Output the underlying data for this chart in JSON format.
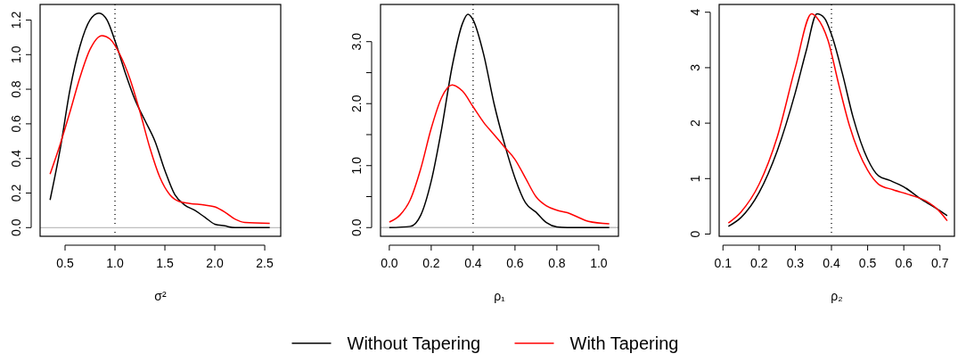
{
  "chart_data": [
    {
      "type": "line",
      "xlabel": "σ²",
      "xlim": [
        0.25,
        2.66
      ],
      "ylim": [
        -0.05,
        1.29
      ],
      "xticks": [
        0.5,
        {
          "value": 1,
          "label": "1.0"
        },
        1.5,
        {
          "value": 2,
          "label": "2.0"
        },
        2.5
      ],
      "yticks": [
        {
          "value": 0,
          "label": "0.0"
        },
        0.2,
        0.4,
        0.6,
        0.8,
        {
          "value": 1,
          "label": "1.0"
        },
        1.2
      ],
      "legend": "bottom",
      "line_style": "solid",
      "ref_lines": [
        {
          "axis": "x",
          "value": 1,
          "color": "#000000",
          "line_style": "dotted"
        },
        {
          "axis": "y",
          "value": 0,
          "color": "#bebebe",
          "line_style": "solid"
        }
      ],
      "series": [
        {
          "name": "Without Tapering",
          "color": "#000000",
          "x": [
            0.35,
            0.45,
            0.55,
            0.65,
            0.75,
            0.84,
            0.92,
            1.0,
            1.1,
            1.2,
            1.3,
            1.4,
            1.5,
            1.6,
            1.7,
            1.8,
            1.9,
            2.0,
            2.1,
            2.2,
            2.55
          ],
          "values": [
            0.16,
            0.45,
            0.8,
            1.05,
            1.2,
            1.24,
            1.2,
            1.08,
            0.9,
            0.74,
            0.62,
            0.5,
            0.33,
            0.19,
            0.13,
            0.1,
            0.06,
            0.02,
            0.01,
            0,
            0
          ]
        },
        {
          "name": "With Tapering",
          "color": "#ff0000",
          "x": [
            0.35,
            0.45,
            0.55,
            0.65,
            0.75,
            0.87,
            0.95,
            1.05,
            1.15,
            1.25,
            1.35,
            1.45,
            1.55,
            1.65,
            1.75,
            1.9,
            2.0,
            2.1,
            2.2,
            2.3,
            2.55
          ],
          "values": [
            0.31,
            0.48,
            0.67,
            0.87,
            1.03,
            1.11,
            1.09,
            1.0,
            0.86,
            0.67,
            0.46,
            0.29,
            0.19,
            0.15,
            0.14,
            0.13,
            0.12,
            0.09,
            0.05,
            0.03,
            0.025
          ]
        }
      ]
    },
    {
      "type": "line",
      "xlabel": "ρ₁",
      "xlim": [
        -0.042,
        1.094
      ],
      "ylim": [
        -0.14,
        3.6
      ],
      "xticks": [
        {
          "value": 0,
          "label": "0.0"
        },
        0.2,
        0.4,
        0.6,
        0.8,
        {
          "value": 1,
          "label": "1.0"
        }
      ],
      "yticks": [
        {
          "value": 0,
          "label": "0.0"
        },
        {
          "value": 0.5,
          "label": null
        },
        {
          "value": 1,
          "label": "1.0"
        },
        {
          "value": 1.5,
          "label": null
        },
        {
          "value": 2,
          "label": "2.0"
        },
        {
          "value": 2.5,
          "label": null
        },
        {
          "value": 3,
          "label": "3.0"
        }
      ],
      "line_style": "solid",
      "ref_lines": [
        {
          "axis": "x",
          "value": 0.4,
          "color": "#000000",
          "line_style": "dotted"
        },
        {
          "axis": "y",
          "value": 0,
          "color": "#bebebe",
          "line_style": "solid"
        }
      ],
      "series": [
        {
          "color": "#000000",
          "x": [
            0,
            0.1,
            0.15,
            0.2,
            0.25,
            0.3,
            0.35,
            0.375,
            0.4,
            0.45,
            0.5,
            0.55,
            0.6,
            0.65,
            0.7,
            0.75,
            0.8,
            0.85,
            1.05
          ],
          "values": [
            0,
            0.02,
            0.2,
            0.75,
            1.6,
            2.6,
            3.3,
            3.44,
            3.35,
            2.8,
            2.0,
            1.35,
            0.8,
            0.4,
            0.25,
            0.08,
            0.01,
            0,
            0
          ]
        },
        {
          "color": "#ff0000",
          "x": [
            0,
            0.05,
            0.1,
            0.15,
            0.2,
            0.25,
            0.3,
            0.35,
            0.4,
            0.45,
            0.5,
            0.55,
            0.6,
            0.65,
            0.7,
            0.75,
            0.8,
            0.85,
            0.9,
            0.95,
            1.05
          ],
          "values": [
            0.09,
            0.2,
            0.45,
            0.95,
            1.6,
            2.1,
            2.3,
            2.2,
            1.95,
            1.7,
            1.5,
            1.3,
            1.1,
            0.8,
            0.5,
            0.35,
            0.28,
            0.24,
            0.17,
            0.1,
            0.06
          ]
        }
      ]
    },
    {
      "type": "line",
      "xlabel": "ρ₂",
      "xlim": [
        0.0895,
        0.74
      ],
      "ylim": [
        -0.04,
        4.14
      ],
      "xticks": [
        0.1,
        0.2,
        0.3,
        0.4,
        0.5,
        0.6,
        0.7
      ],
      "yticks": [
        0,
        1,
        2,
        3,
        4
      ],
      "line_style": "solid",
      "ref_lines": [
        {
          "axis": "x",
          "value": 0.4,
          "color": "#000000",
          "line_style": "dotted"
        }
      ],
      "series": [
        {
          "color": "#000000",
          "x": [
            0.115,
            0.15,
            0.2,
            0.25,
            0.3,
            0.33,
            0.36,
            0.38,
            0.4,
            0.43,
            0.46,
            0.5,
            0.53,
            0.56,
            0.6,
            0.65,
            0.7,
            0.72
          ],
          "values": [
            0.14,
            0.3,
            0.75,
            1.5,
            2.55,
            3.3,
            3.97,
            3.9,
            3.6,
            2.9,
            2.1,
            1.35,
            1.05,
            0.97,
            0.85,
            0.62,
            0.42,
            0.33
          ]
        },
        {
          "color": "#ff0000",
          "x": [
            0.115,
            0.15,
            0.2,
            0.25,
            0.3,
            0.345,
            0.36,
            0.39,
            0.42,
            0.45,
            0.5,
            0.53,
            0.57,
            0.62,
            0.66,
            0.7,
            0.72
          ],
          "values": [
            0.2,
            0.4,
            0.9,
            1.75,
            3.0,
            3.97,
            3.9,
            3.5,
            2.7,
            1.95,
            1.15,
            0.9,
            0.8,
            0.7,
            0.6,
            0.4,
            0.24
          ]
        }
      ]
    }
  ]
}
